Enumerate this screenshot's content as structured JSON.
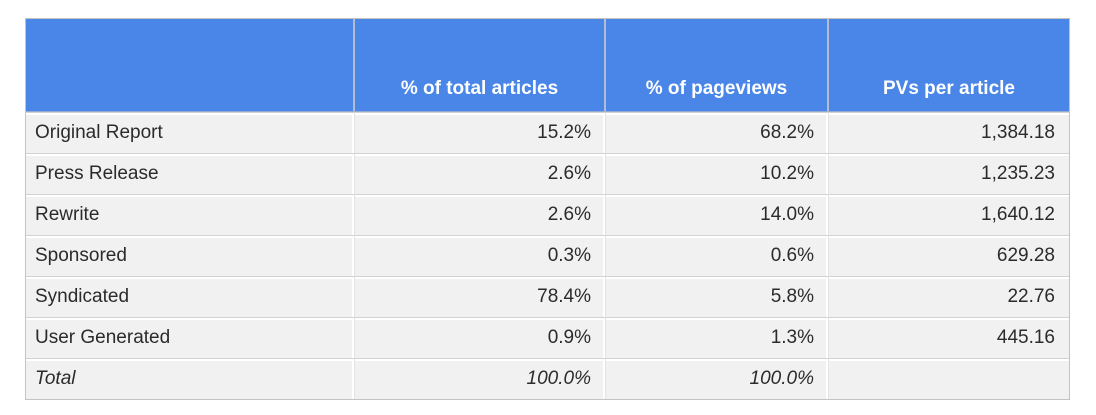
{
  "chart_data": {
    "type": "table",
    "columns": [
      "",
      "% of total articles",
      "% of pageviews",
      "PVs per article"
    ],
    "rows": [
      [
        "Original Report",
        "15.2%",
        "68.2%",
        "1,384.18"
      ],
      [
        "Press Release",
        "2.6%",
        "10.2%",
        "1,235.23"
      ],
      [
        "Rewrite",
        "2.6%",
        "14.0%",
        "1,640.12"
      ],
      [
        "Sponsored",
        "0.3%",
        "0.6%",
        "629.28"
      ],
      [
        "Syndicated",
        "78.4%",
        "5.8%",
        "22.76"
      ],
      [
        "User Generated",
        "0.9%",
        "1.3%",
        "445.16"
      ],
      [
        "Total",
        "100.0%",
        "100.0%",
        ""
      ]
    ],
    "layout_hints": {
      "header_alignment": "center-bottom",
      "numeric_alignment": "right",
      "total_row_style": "italic"
    },
    "colors": {
      "header_bg": "#4a86e8",
      "header_text": "#ffffff",
      "cell_bg": "#f1f1f1",
      "grid_line": "#d2d2d2",
      "outer_border": "#c3c3c3",
      "body_text": "#2b2b2b"
    }
  }
}
